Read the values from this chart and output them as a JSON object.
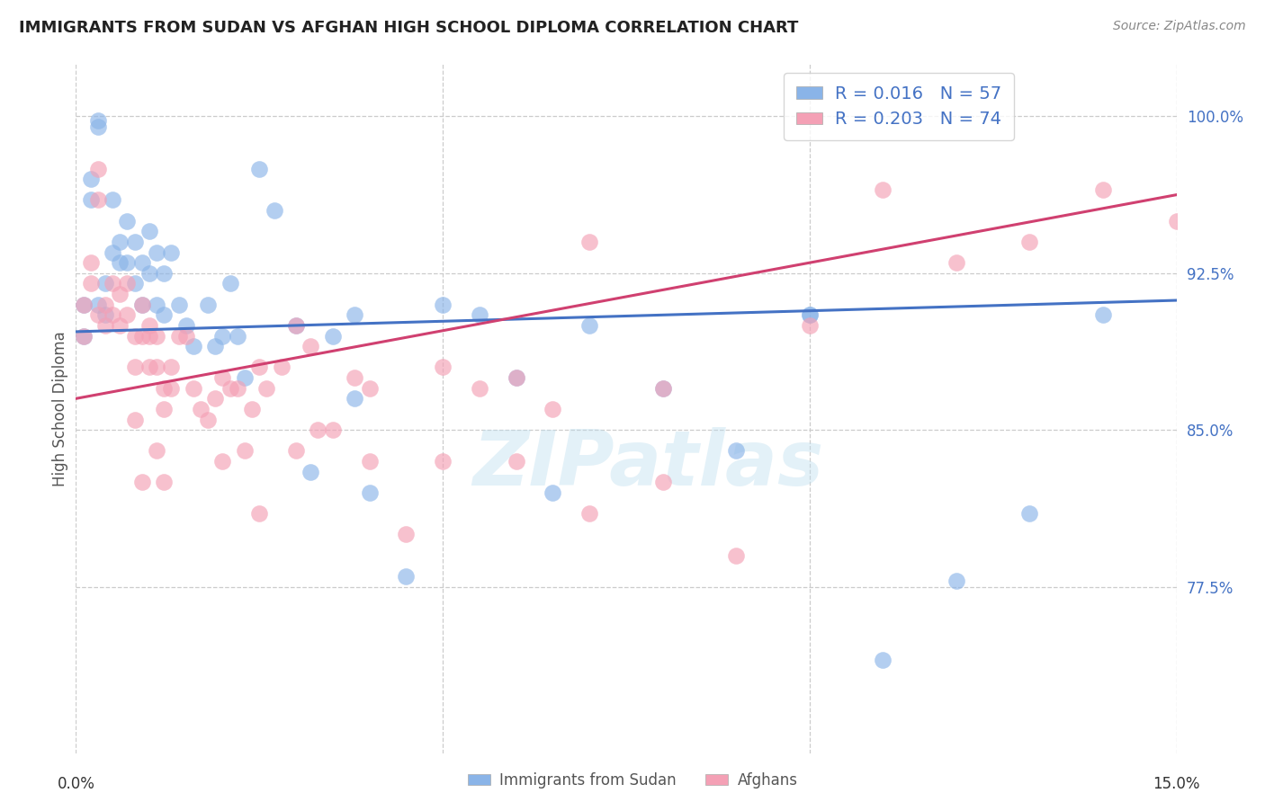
{
  "title": "IMMIGRANTS FROM SUDAN VS AFGHAN HIGH SCHOOL DIPLOMA CORRELATION CHART",
  "source": "Source: ZipAtlas.com",
  "ylabel": "High School Diploma",
  "ytick_values": [
    1.0,
    0.925,
    0.85,
    0.775
  ],
  "ytick_labels": [
    "100.0%",
    "92.5%",
    "85.0%",
    "77.5%"
  ],
  "xlim": [
    0.0,
    0.15
  ],
  "ylim": [
    0.695,
    1.025
  ],
  "xtick_positions": [
    0.0,
    0.05,
    0.1,
    0.15
  ],
  "xtick_label_left": "0.0%",
  "xtick_label_right": "15.0%",
  "color_blue": "#8ab4e8",
  "color_pink": "#f4a0b5",
  "color_blue_line": "#4472c4",
  "color_pink_line": "#d04070",
  "watermark": "ZIPatlas",
  "legend_label1": "Immigrants from Sudan",
  "legend_label2": "Afghans",
  "legend_R1": "R = 0.016",
  "legend_N1": "N = 57",
  "legend_R2": "R = 0.203",
  "legend_N2": "N = 74",
  "blue_x": [
    0.001,
    0.001,
    0.002,
    0.002,
    0.003,
    0.003,
    0.003,
    0.004,
    0.004,
    0.005,
    0.005,
    0.006,
    0.006,
    0.007,
    0.007,
    0.008,
    0.008,
    0.009,
    0.009,
    0.01,
    0.01,
    0.011,
    0.011,
    0.012,
    0.012,
    0.013,
    0.014,
    0.015,
    0.016,
    0.018,
    0.019,
    0.02,
    0.021,
    0.022,
    0.023,
    0.025,
    0.027,
    0.03,
    0.032,
    0.035,
    0.038,
    0.04,
    0.045,
    0.05,
    0.055,
    0.06,
    0.065,
    0.07,
    0.08,
    0.09,
    0.1,
    0.11,
    0.12,
    0.13,
    0.14,
    0.038,
    0.1
  ],
  "blue_y": [
    0.91,
    0.895,
    0.97,
    0.96,
    0.998,
    0.995,
    0.91,
    0.92,
    0.905,
    0.96,
    0.935,
    0.94,
    0.93,
    0.95,
    0.93,
    0.94,
    0.92,
    0.93,
    0.91,
    0.945,
    0.925,
    0.935,
    0.91,
    0.925,
    0.905,
    0.935,
    0.91,
    0.9,
    0.89,
    0.91,
    0.89,
    0.895,
    0.92,
    0.895,
    0.875,
    0.975,
    0.955,
    0.9,
    0.83,
    0.895,
    0.865,
    0.82,
    0.78,
    0.91,
    0.905,
    0.875,
    0.82,
    0.9,
    0.87,
    0.84,
    0.905,
    0.74,
    0.778,
    0.81,
    0.905,
    0.905,
    0.905
  ],
  "pink_x": [
    0.001,
    0.001,
    0.002,
    0.002,
    0.003,
    0.003,
    0.004,
    0.004,
    0.005,
    0.005,
    0.006,
    0.006,
    0.007,
    0.007,
    0.008,
    0.008,
    0.009,
    0.009,
    0.01,
    0.01,
    0.011,
    0.011,
    0.012,
    0.012,
    0.013,
    0.013,
    0.014,
    0.015,
    0.016,
    0.017,
    0.018,
    0.019,
    0.02,
    0.021,
    0.022,
    0.023,
    0.024,
    0.025,
    0.026,
    0.028,
    0.03,
    0.032,
    0.033,
    0.035,
    0.038,
    0.04,
    0.045,
    0.05,
    0.055,
    0.06,
    0.065,
    0.07,
    0.08,
    0.09,
    0.1,
    0.11,
    0.12,
    0.13,
    0.14,
    0.15,
    0.003,
    0.008,
    0.009,
    0.01,
    0.011,
    0.012,
    0.02,
    0.025,
    0.03,
    0.04,
    0.05,
    0.06,
    0.07,
    0.08
  ],
  "pink_y": [
    0.91,
    0.895,
    0.93,
    0.92,
    0.96,
    0.905,
    0.91,
    0.9,
    0.92,
    0.905,
    0.915,
    0.9,
    0.92,
    0.905,
    0.895,
    0.88,
    0.91,
    0.895,
    0.895,
    0.88,
    0.895,
    0.88,
    0.87,
    0.86,
    0.88,
    0.87,
    0.895,
    0.895,
    0.87,
    0.86,
    0.855,
    0.865,
    0.875,
    0.87,
    0.87,
    0.84,
    0.86,
    0.88,
    0.87,
    0.88,
    0.9,
    0.89,
    0.85,
    0.85,
    0.875,
    0.835,
    0.8,
    0.88,
    0.87,
    0.875,
    0.86,
    0.94,
    0.87,
    0.79,
    0.9,
    0.965,
    0.93,
    0.94,
    0.965,
    0.95,
    0.975,
    0.855,
    0.825,
    0.9,
    0.84,
    0.825,
    0.835,
    0.81,
    0.84,
    0.87,
    0.835,
    0.835,
    0.81,
    0.825
  ]
}
